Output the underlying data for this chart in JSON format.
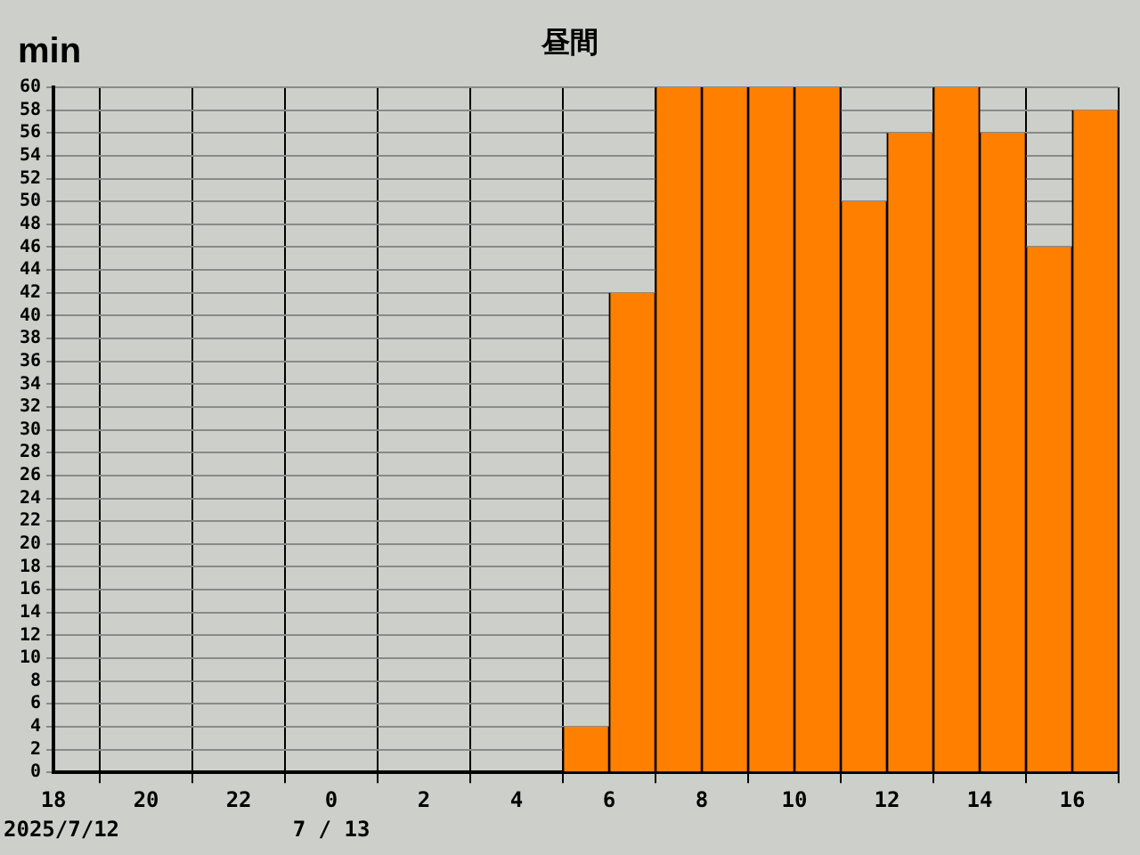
{
  "chart_data": {
    "type": "bar",
    "title": "昼間",
    "ylabel": "min",
    "x": [
      "2025-07-12T18:30",
      "2025-07-12T19:30",
      "2025-07-12T20:30",
      "2025-07-12T21:30",
      "2025-07-12T22:30",
      "2025-07-12T23:30",
      "2025-07-13T00:30",
      "2025-07-13T01:30",
      "2025-07-13T02:30",
      "2025-07-13T03:30",
      "2025-07-13T04:30",
      "2025-07-13T05:30",
      "2025-07-13T06:30",
      "2025-07-13T07:30",
      "2025-07-13T08:30",
      "2025-07-13T09:30",
      "2025-07-13T10:30",
      "2025-07-13T11:30",
      "2025-07-13T12:30",
      "2025-07-13T13:30",
      "2025-07-13T14:30",
      "2025-07-13T15:30",
      "2025-07-13T16:30"
    ],
    "values": [
      0,
      0,
      0,
      0,
      0,
      0,
      0,
      0,
      0,
      0,
      0,
      4,
      42,
      60,
      60,
      60,
      60,
      50,
      56,
      60,
      56,
      46,
      58
    ],
    "color": "#ff8000",
    "xlim": [
      "2025-07-12T18:00",
      "2025-07-13T17:00"
    ],
    "xticks": [
      {
        "value": "2025-07-12T18:00",
        "label": "18"
      },
      {
        "value": "2025-07-12T20:00",
        "label": "20"
      },
      {
        "value": "2025-07-12T22:00",
        "label": "22"
      },
      {
        "value": "2025-07-13T00:00",
        "label": "0"
      },
      {
        "value": "2025-07-13T02:00",
        "label": "2"
      },
      {
        "value": "2025-07-13T04:00",
        "label": "4"
      },
      {
        "value": "2025-07-13T06:00",
        "label": "6"
      },
      {
        "value": "2025-07-13T08:00",
        "label": "8"
      },
      {
        "value": "2025-07-13T10:00",
        "label": "10"
      },
      {
        "value": "2025-07-13T12:00",
        "label": "12"
      },
      {
        "value": "2025-07-13T14:00",
        "label": "14"
      },
      {
        "value": "2025-07-13T16:00",
        "label": "16"
      }
    ],
    "ylim": [
      0,
      60
    ],
    "yticks": [
      0,
      2,
      4,
      6,
      8,
      10,
      12,
      14,
      16,
      18,
      20,
      22,
      24,
      26,
      28,
      30,
      32,
      34,
      36,
      38,
      40,
      42,
      44,
      46,
      48,
      50,
      52,
      54,
      56,
      58,
      60
    ],
    "grid": true,
    "legend": false,
    "annotations": [
      "2025/7/12",
      "7 / 13"
    ]
  }
}
